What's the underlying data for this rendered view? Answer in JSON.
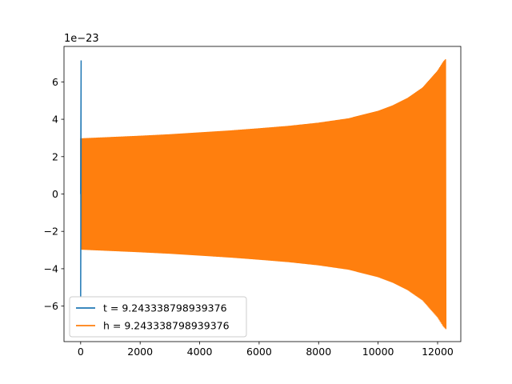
{
  "chart_data": {
    "type": "line",
    "title": "",
    "xlabel": "",
    "ylabel": "",
    "y_offset_label": "1e−23",
    "xlim": [
      -560,
      12780
    ],
    "ylim": [
      -7.9,
      7.9
    ],
    "x_ticks": [
      0,
      2000,
      4000,
      6000,
      8000,
      10000,
      12000
    ],
    "x_tick_labels": [
      "0",
      "2000",
      "4000",
      "6000",
      "8000",
      "10000",
      "12000"
    ],
    "y_ticks": [
      -6,
      -4,
      -2,
      0,
      2,
      4,
      6
    ],
    "y_tick_labels": [
      "−6",
      "−4",
      "−2",
      "0",
      "2",
      "4",
      "6"
    ],
    "grid": false,
    "legend_position": "lower-left",
    "series": [
      {
        "name": "t = 9.243338798939376",
        "color": "#1f77b4",
        "description": "narrow spike near x = 0",
        "x": [
          0,
          0,
          0,
          0,
          0
        ],
        "y": [
          0,
          7.15,
          -5.5,
          3.0,
          0
        ]
      },
      {
        "name": "h = 9.243338798939376",
        "color": "#ff7f0e",
        "description": "dense oscillation; amplitude envelope (upper bound) versus x",
        "envelope_x": [
          0,
          1000,
          2000,
          3000,
          4000,
          5000,
          6000,
          7000,
          8000,
          9000,
          10000,
          10500,
          11000,
          11500,
          12000,
          12200,
          12290
        ],
        "envelope_y": [
          2.98,
          3.05,
          3.12,
          3.2,
          3.3,
          3.4,
          3.52,
          3.65,
          3.82,
          4.05,
          4.45,
          4.75,
          5.15,
          5.7,
          6.6,
          7.1,
          7.25
        ]
      }
    ]
  }
}
